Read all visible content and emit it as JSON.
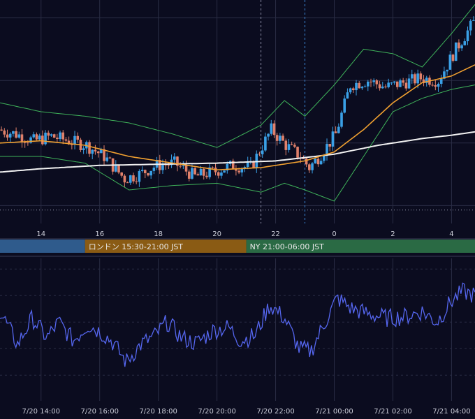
{
  "colors": {
    "background": "#0b0c1f",
    "grid": "#2a2d45",
    "candle_up": "#3aa0e6",
    "candle_down": "#e0806a",
    "bollinger": "#3fb35a",
    "ma_short": "#f0a030",
    "ma_long": "#f2f2f2",
    "oscillator": "#5566ee",
    "session_tokyo": "#2f5b8c",
    "session_london": "#8a5b14",
    "session_ny": "#2a6a44"
  },
  "sessions": [
    {
      "label": "",
      "start_hour": 12.5,
      "end_hour": 15.5,
      "color": "session_tokyo"
    },
    {
      "label": "ロンドン 15:30-21:00 JST",
      "start_hour": 15.5,
      "end_hour": 21.0,
      "color": "session_london"
    },
    {
      "label": "NY 21:00-06:00 JST",
      "start_hour": 21.0,
      "end_hour": 30.0,
      "color": "session_ny"
    }
  ],
  "chart_data": [
    {
      "type": "candlestick",
      "title": "",
      "x_unit": "hours",
      "x_range": [
        12.6,
        28.8
      ],
      "x_ticks": [
        {
          "hour": 14,
          "label": "14"
        },
        {
          "hour": 16,
          "label": "16"
        },
        {
          "hour": 18,
          "label": "18"
        },
        {
          "hour": 20,
          "label": "20"
        },
        {
          "hour": 22,
          "label": "22"
        },
        {
          "hour": 24,
          "label": "0"
        },
        {
          "hour": 26,
          "label": "2"
        },
        {
          "hour": 28,
          "label": "4"
        }
      ],
      "price_range": [
        0,
        100
      ],
      "gridlines": [
        8,
        36,
        64,
        92
      ],
      "dotted_level": 6,
      "markers": [
        {
          "hour": 21.5,
          "style": "dashed",
          "color": "#8a8da3"
        },
        {
          "hour": 23.0,
          "style": "dashed",
          "color": "#3a88d6"
        }
      ],
      "close_anchors": [
        [
          12.6,
          42
        ],
        [
          13.2,
          40
        ],
        [
          13.8,
          37
        ],
        [
          14.4,
          39
        ],
        [
          15.0,
          37
        ],
        [
          15.6,
          35
        ],
        [
          16.2,
          30
        ],
        [
          16.9,
          20
        ],
        [
          17.4,
          22
        ],
        [
          18.0,
          26
        ],
        [
          18.6,
          27
        ],
        [
          19.3,
          21
        ],
        [
          19.9,
          23
        ],
        [
          20.6,
          26
        ],
        [
          21.2,
          25
        ],
        [
          21.9,
          42
        ],
        [
          22.4,
          35
        ],
        [
          22.9,
          30
        ],
        [
          23.2,
          25
        ],
        [
          23.6,
          31
        ],
        [
          24.1,
          40
        ],
        [
          24.6,
          62
        ],
        [
          25.2,
          64
        ],
        [
          25.8,
          61
        ],
        [
          26.4,
          63
        ],
        [
          27.0,
          65
        ],
        [
          27.6,
          64
        ],
        [
          28.2,
          78
        ],
        [
          28.8,
          90
        ]
      ],
      "ma_short": [
        [
          12.6,
          36
        ],
        [
          14.0,
          37
        ],
        [
          15.5,
          35
        ],
        [
          17.0,
          30
        ],
        [
          18.5,
          27
        ],
        [
          20.0,
          24
        ],
        [
          21.5,
          25
        ],
        [
          23.0,
          28
        ],
        [
          24.0,
          32
        ],
        [
          25.0,
          42
        ],
        [
          26.0,
          54
        ],
        [
          27.0,
          63
        ],
        [
          28.0,
          66
        ],
        [
          28.8,
          71
        ]
      ],
      "ma_long": [
        [
          12.6,
          23
        ],
        [
          14.0,
          24.5
        ],
        [
          16.0,
          26
        ],
        [
          18.0,
          26.5
        ],
        [
          20.0,
          27
        ],
        [
          22.0,
          28
        ],
        [
          24.0,
          31
        ],
        [
          25.5,
          35
        ],
        [
          27.0,
          38
        ],
        [
          28.0,
          39.5
        ],
        [
          28.8,
          41
        ]
      ],
      "bb_upper": [
        [
          12.6,
          54
        ],
        [
          14.0,
          50
        ],
        [
          15.5,
          48
        ],
        [
          17.0,
          45
        ],
        [
          18.5,
          40
        ],
        [
          20.0,
          34
        ],
        [
          21.5,
          44
        ],
        [
          22.3,
          55
        ],
        [
          23.0,
          48
        ],
        [
          24.0,
          62
        ],
        [
          25.0,
          78
        ],
        [
          26.0,
          76
        ],
        [
          27.0,
          70
        ],
        [
          28.0,
          85
        ],
        [
          28.8,
          98
        ]
      ],
      "bb_lower": [
        [
          12.6,
          30
        ],
        [
          14.0,
          30
        ],
        [
          15.5,
          27
        ],
        [
          17.0,
          15
        ],
        [
          18.5,
          17
        ],
        [
          20.0,
          18
        ],
        [
          21.5,
          14
        ],
        [
          22.3,
          18
        ],
        [
          23.0,
          15
        ],
        [
          24.0,
          10
        ],
        [
          25.0,
          30
        ],
        [
          26.0,
          50
        ],
        [
          27.0,
          56
        ],
        [
          28.0,
          60
        ],
        [
          28.8,
          62
        ]
      ]
    },
    {
      "type": "line",
      "title": "",
      "series_name": "",
      "x_unit": "hours",
      "x_range": [
        12.6,
        28.8
      ],
      "y_range": [
        0,
        100
      ],
      "gridlines": [
        12,
        32,
        52,
        72,
        92
      ],
      "x_ticks": [
        {
          "hour": 14,
          "label": "7/20 14:00"
        },
        {
          "hour": 16,
          "label": "7/20 16:00"
        },
        {
          "hour": 18,
          "label": "7/20 18:00"
        },
        {
          "hour": 20,
          "label": "7/20 20:00"
        },
        {
          "hour": 22,
          "label": "7/20 22:00"
        },
        {
          "hour": 24,
          "label": "7/21 00:00"
        },
        {
          "hour": 26,
          "label": "7/21 02:00"
        },
        {
          "hour": 28,
          "label": "7/21 04:00"
        }
      ],
      "anchors": [
        [
          12.6,
          60
        ],
        [
          13.2,
          35
        ],
        [
          13.7,
          55
        ],
        [
          14.2,
          40
        ],
        [
          14.6,
          52
        ],
        [
          15.1,
          38
        ],
        [
          15.6,
          50
        ],
        [
          16.0,
          45
        ],
        [
          16.4,
          38
        ],
        [
          16.9,
          22
        ],
        [
          17.4,
          35
        ],
        [
          17.9,
          42
        ],
        [
          18.3,
          52
        ],
        [
          18.8,
          40
        ],
        [
          19.3,
          36
        ],
        [
          19.9,
          46
        ],
        [
          20.4,
          48
        ],
        [
          20.8,
          38
        ],
        [
          21.3,
          42
        ],
        [
          21.8,
          65
        ],
        [
          22.3,
          55
        ],
        [
          22.8,
          32
        ],
        [
          23.2,
          30
        ],
        [
          23.6,
          48
        ],
        [
          24.1,
          70
        ],
        [
          24.6,
          62
        ],
        [
          25.2,
          58
        ],
        [
          25.8,
          55
        ],
        [
          26.4,
          56
        ],
        [
          27.0,
          60
        ],
        [
          27.5,
          52
        ],
        [
          28.0,
          68
        ],
        [
          28.4,
          75
        ],
        [
          28.8,
          72
        ]
      ]
    }
  ]
}
